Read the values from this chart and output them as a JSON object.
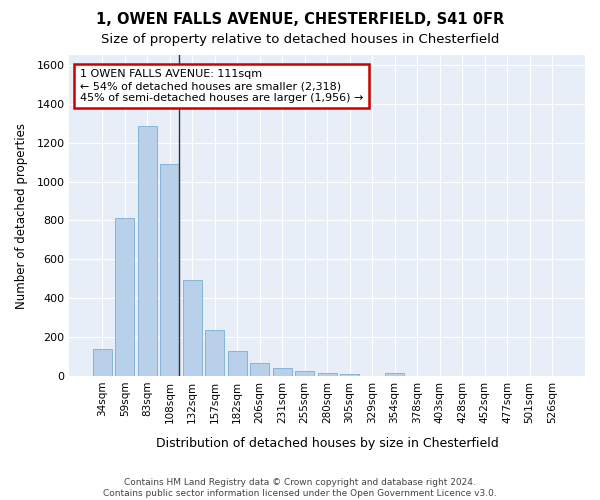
{
  "title1": "1, OWEN FALLS AVENUE, CHESTERFIELD, S41 0FR",
  "title2": "Size of property relative to detached houses in Chesterfield",
  "xlabel": "Distribution of detached houses by size in Chesterfield",
  "ylabel": "Number of detached properties",
  "categories": [
    "34sqm",
    "59sqm",
    "83sqm",
    "108sqm",
    "132sqm",
    "157sqm",
    "182sqm",
    "206sqm",
    "231sqm",
    "255sqm",
    "280sqm",
    "305sqm",
    "329sqm",
    "354sqm",
    "378sqm",
    "403sqm",
    "428sqm",
    "452sqm",
    "477sqm",
    "501sqm",
    "526sqm"
  ],
  "values": [
    140,
    815,
    1285,
    1090,
    495,
    237,
    127,
    65,
    40,
    27,
    15,
    12,
    0,
    18,
    0,
    0,
    0,
    0,
    0,
    0,
    0
  ],
  "bar_color": "#b8d0ea",
  "bar_edge_color": "#7aafd4",
  "property_line_bin": 3,
  "annotation_text": "1 OWEN FALLS AVENUE: 111sqm\n← 54% of detached houses are smaller (2,318)\n45% of semi-detached houses are larger (1,956) →",
  "annotation_box_color": "#ffffff",
  "annotation_border_color": "#cc0000",
  "footer1": "Contains HM Land Registry data © Crown copyright and database right 2024.",
  "footer2": "Contains public sector information licensed under the Open Government Licence v3.0.",
  "ylim": [
    0,
    1650
  ],
  "yticks": [
    0,
    200,
    400,
    600,
    800,
    1000,
    1200,
    1400,
    1600
  ],
  "bg_color": "#ffffff",
  "plot_bg_color": "#e8eef7",
  "grid_color": "#ffffff",
  "title_fontsize": 10.5,
  "subtitle_fontsize": 9.5,
  "annot_fontsize": 8
}
